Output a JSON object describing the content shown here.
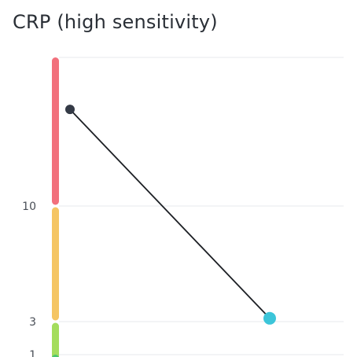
{
  "chart_data": {
    "type": "line",
    "title": "CRP (high sensitivity)",
    "xlabel": "",
    "ylabel": "",
    "y_ticks": [
      1,
      3,
      10
    ],
    "y_tick_labels": [
      "1",
      "3",
      "10"
    ],
    "grid": true,
    "legend": "none",
    "series": [
      {
        "values": [
          {
            "x": 1,
            "y": 16.5
          },
          {
            "x": 2,
            "y": 3.2
          }
        ],
        "line_color": "#1c1f24",
        "point_colors": [
          "#343a46",
          "#3cc5d9"
        ]
      }
    ],
    "reference_ranges": [
      {
        "from": 0,
        "to": 3,
        "color": "#a4dd5c"
      },
      {
        "from": 3,
        "to": 10,
        "color": "#f5c563"
      },
      {
        "from": 10,
        "to": 20,
        "color": "#f2707c"
      }
    ],
    "below_range_color": "#4cc46e",
    "gridline_color": "#e7e9ec"
  }
}
